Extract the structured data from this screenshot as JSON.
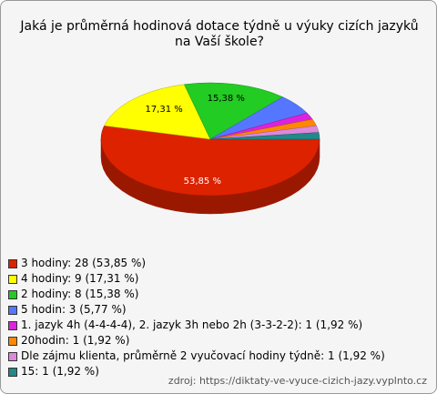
{
  "chart_data": {
    "type": "pie",
    "title": "Jaká je průměrná hodinová dotace týdně u výuky cizích jazyků na Vaší škole?",
    "categories": [
      "3 hodiny: 28 (53,85 %)",
      "4 hodiny: 9 (17,31 %)",
      "2 hodiny: 8 (15,38 %)",
      "5 hodin: 3 (5,77 %)",
      "1. jazyk 4h (4-4-4-4), 2. jazyk 3h nebo 2h (3-3-2-2): 1 (1,92 %)",
      "20hodin: 1 (1,92 %)",
      "Dle zájmu klienta, průměrně 2 vyučovací hodiny týdně: 1 (1,92 %)",
      "15: 1 (1,92 %)"
    ],
    "values": [
      53.85,
      17.31,
      15.38,
      5.77,
      1.92,
      1.92,
      1.92,
      1.92
    ],
    "value_labels": [
      "53,85 %",
      "17,31 %",
      "15,38 %",
      null,
      null,
      null,
      null,
      null
    ],
    "colors": [
      "#dd2200",
      "#ffff00",
      "#22cc22",
      "#5577ff",
      "#dd22dd",
      "#ff8800",
      "#dd88dd",
      "#228888"
    ],
    "source": "zdroj: https://diktaty-ve-vyuce-cizich-jazy.vyplnto.cz"
  }
}
